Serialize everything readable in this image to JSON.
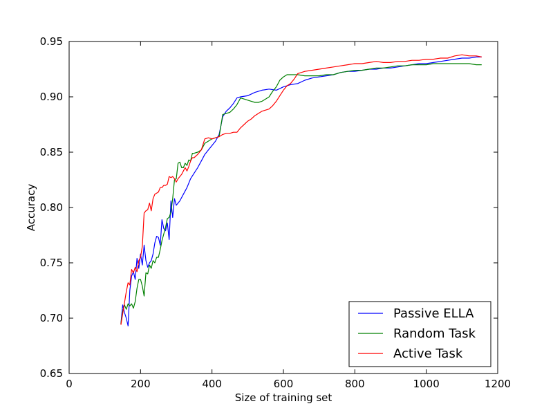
{
  "chart_data": {
    "type": "line",
    "xlabel": "Size of training set",
    "ylabel": "Accuracy",
    "xlim": [
      0,
      1200
    ],
    "ylim": [
      0.65,
      0.95
    ],
    "x_ticks": [
      "0",
      "200",
      "400",
      "600",
      "800",
      "1000",
      "1200"
    ],
    "y_ticks": [
      "0.65",
      "0.70",
      "0.75",
      "0.80",
      "0.85",
      "0.90",
      "0.95"
    ],
    "grid": false,
    "legend_position": "lower right",
    "series": [
      {
        "name": "Passive ELLA",
        "color": "#0000ff",
        "points": [
          [
            145,
            0.695
          ],
          [
            150,
            0.712
          ],
          [
            155,
            0.705
          ],
          [
            160,
            0.7
          ],
          [
            165,
            0.693
          ],
          [
            170,
            0.725
          ],
          [
            175,
            0.738
          ],
          [
            180,
            0.742
          ],
          [
            185,
            0.735
          ],
          [
            190,
            0.754
          ],
          [
            195,
            0.745
          ],
          [
            200,
            0.758
          ],
          [
            205,
            0.748
          ],
          [
            210,
            0.766
          ],
          [
            215,
            0.752
          ],
          [
            220,
            0.746
          ],
          [
            225,
            0.75
          ],
          [
            230,
            0.752
          ],
          [
            235,
            0.758
          ],
          [
            240,
            0.768
          ],
          [
            245,
            0.774
          ],
          [
            250,
            0.773
          ],
          [
            255,
            0.766
          ],
          [
            260,
            0.789
          ],
          [
            265,
            0.781
          ],
          [
            270,
            0.779
          ],
          [
            275,
            0.786
          ],
          [
            280,
            0.771
          ],
          [
            285,
            0.806
          ],
          [
            290,
            0.791
          ],
          [
            295,
            0.808
          ],
          [
            300,
            0.802
          ],
          [
            310,
            0.806
          ],
          [
            320,
            0.812
          ],
          [
            330,
            0.818
          ],
          [
            340,
            0.826
          ],
          [
            350,
            0.831
          ],
          [
            360,
            0.836
          ],
          [
            370,
            0.842
          ],
          [
            380,
            0.848
          ],
          [
            390,
            0.852
          ],
          [
            400,
            0.856
          ],
          [
            410,
            0.86
          ],
          [
            420,
            0.866
          ],
          [
            430,
            0.882
          ],
          [
            440,
            0.887
          ],
          [
            450,
            0.89
          ],
          [
            460,
            0.894
          ],
          [
            470,
            0.899
          ],
          [
            480,
            0.9
          ],
          [
            500,
            0.901
          ],
          [
            520,
            0.904
          ],
          [
            540,
            0.906
          ],
          [
            560,
            0.907
          ],
          [
            580,
            0.906
          ],
          [
            600,
            0.909
          ],
          [
            620,
            0.911
          ],
          [
            640,
            0.912
          ],
          [
            660,
            0.915
          ],
          [
            680,
            0.917
          ],
          [
            700,
            0.918
          ],
          [
            720,
            0.919
          ],
          [
            740,
            0.92
          ],
          [
            760,
            0.922
          ],
          [
            780,
            0.923
          ],
          [
            800,
            0.923
          ],
          [
            820,
            0.924
          ],
          [
            840,
            0.925
          ],
          [
            860,
            0.925
          ],
          [
            880,
            0.926
          ],
          [
            900,
            0.926
          ],
          [
            920,
            0.927
          ],
          [
            940,
            0.928
          ],
          [
            960,
            0.929
          ],
          [
            980,
            0.93
          ],
          [
            1000,
            0.93
          ],
          [
            1020,
            0.931
          ],
          [
            1040,
            0.932
          ],
          [
            1060,
            0.933
          ],
          [
            1080,
            0.934
          ],
          [
            1100,
            0.935
          ],
          [
            1120,
            0.935
          ],
          [
            1140,
            0.936
          ],
          [
            1155,
            0.936
          ]
        ]
      },
      {
        "name": "Random Task",
        "color": "#008000",
        "points": [
          [
            145,
            0.695
          ],
          [
            150,
            0.706
          ],
          [
            155,
            0.712
          ],
          [
            160,
            0.708
          ],
          [
            165,
            0.713
          ],
          [
            170,
            0.711
          ],
          [
            175,
            0.713
          ],
          [
            180,
            0.709
          ],
          [
            185,
            0.715
          ],
          [
            190,
            0.727
          ],
          [
            195,
            0.735
          ],
          [
            200,
            0.735
          ],
          [
            205,
            0.729
          ],
          [
            210,
            0.72
          ],
          [
            215,
            0.741
          ],
          [
            220,
            0.74
          ],
          [
            225,
            0.748
          ],
          [
            230,
            0.745
          ],
          [
            235,
            0.752
          ],
          [
            240,
            0.75
          ],
          [
            245,
            0.755
          ],
          [
            250,
            0.755
          ],
          [
            255,
            0.762
          ],
          [
            260,
            0.77
          ],
          [
            265,
            0.776
          ],
          [
            270,
            0.782
          ],
          [
            275,
            0.79
          ],
          [
            280,
            0.791
          ],
          [
            285,
            0.796
          ],
          [
            290,
            0.808
          ],
          [
            295,
            0.825
          ],
          [
            300,
            0.826
          ],
          [
            305,
            0.84
          ],
          [
            310,
            0.841
          ],
          [
            315,
            0.836
          ],
          [
            320,
            0.836
          ],
          [
            325,
            0.84
          ],
          [
            330,
            0.838
          ],
          [
            335,
            0.843
          ],
          [
            340,
            0.842
          ],
          [
            345,
            0.849
          ],
          [
            350,
            0.849
          ],
          [
            360,
            0.85
          ],
          [
            370,
            0.852
          ],
          [
            380,
            0.858
          ],
          [
            390,
            0.86
          ],
          [
            400,
            0.862
          ],
          [
            410,
            0.863
          ],
          [
            420,
            0.864
          ],
          [
            430,
            0.884
          ],
          [
            440,
            0.885
          ],
          [
            450,
            0.886
          ],
          [
            460,
            0.889
          ],
          [
            470,
            0.893
          ],
          [
            480,
            0.899
          ],
          [
            490,
            0.898
          ],
          [
            500,
            0.897
          ],
          [
            510,
            0.896
          ],
          [
            520,
            0.895
          ],
          [
            530,
            0.895
          ],
          [
            540,
            0.896
          ],
          [
            550,
            0.898
          ],
          [
            560,
            0.9
          ],
          [
            570,
            0.905
          ],
          [
            580,
            0.909
          ],
          [
            590,
            0.915
          ],
          [
            600,
            0.918
          ],
          [
            610,
            0.92
          ],
          [
            620,
            0.92
          ],
          [
            640,
            0.92
          ],
          [
            660,
            0.919
          ],
          [
            680,
            0.919
          ],
          [
            700,
            0.919
          ],
          [
            720,
            0.92
          ],
          [
            740,
            0.92
          ],
          [
            760,
            0.922
          ],
          [
            780,
            0.923
          ],
          [
            800,
            0.924
          ],
          [
            820,
            0.924
          ],
          [
            840,
            0.925
          ],
          [
            860,
            0.926
          ],
          [
            880,
            0.926
          ],
          [
            900,
            0.927
          ],
          [
            920,
            0.928
          ],
          [
            940,
            0.928
          ],
          [
            960,
            0.929
          ],
          [
            980,
            0.929
          ],
          [
            1000,
            0.929
          ],
          [
            1020,
            0.93
          ],
          [
            1040,
            0.93
          ],
          [
            1060,
            0.93
          ],
          [
            1080,
            0.93
          ],
          [
            1100,
            0.93
          ],
          [
            1120,
            0.93
          ],
          [
            1140,
            0.929
          ],
          [
            1155,
            0.929
          ]
        ]
      },
      {
        "name": "Active Task",
        "color": "#ff0000",
        "points": [
          [
            145,
            0.694
          ],
          [
            150,
            0.704
          ],
          [
            155,
            0.714
          ],
          [
            160,
            0.724
          ],
          [
            165,
            0.732
          ],
          [
            170,
            0.73
          ],
          [
            175,
            0.744
          ],
          [
            180,
            0.741
          ],
          [
            185,
            0.746
          ],
          [
            190,
            0.742
          ],
          [
            195,
            0.752
          ],
          [
            200,
            0.755
          ],
          [
            205,
            0.765
          ],
          [
            210,
            0.795
          ],
          [
            215,
            0.797
          ],
          [
            220,
            0.798
          ],
          [
            225,
            0.804
          ],
          [
            230,
            0.797
          ],
          [
            235,
            0.808
          ],
          [
            240,
            0.812
          ],
          [
            245,
            0.813
          ],
          [
            250,
            0.814
          ],
          [
            255,
            0.818
          ],
          [
            260,
            0.818
          ],
          [
            265,
            0.82
          ],
          [
            270,
            0.82
          ],
          [
            275,
            0.821
          ],
          [
            280,
            0.828
          ],
          [
            285,
            0.827
          ],
          [
            290,
            0.828
          ],
          [
            295,
            0.826
          ],
          [
            300,
            0.823
          ],
          [
            305,
            0.826
          ],
          [
            310,
            0.828
          ],
          [
            315,
            0.83
          ],
          [
            320,
            0.833
          ],
          [
            325,
            0.836
          ],
          [
            330,
            0.833
          ],
          [
            335,
            0.837
          ],
          [
            340,
            0.842
          ],
          [
            345,
            0.845
          ],
          [
            350,
            0.845
          ],
          [
            360,
            0.848
          ],
          [
            370,
            0.852
          ],
          [
            380,
            0.862
          ],
          [
            390,
            0.863
          ],
          [
            400,
            0.862
          ],
          [
            410,
            0.863
          ],
          [
            420,
            0.864
          ],
          [
            430,
            0.866
          ],
          [
            440,
            0.867
          ],
          [
            450,
            0.867
          ],
          [
            460,
            0.868
          ],
          [
            470,
            0.868
          ],
          [
            480,
            0.872
          ],
          [
            490,
            0.875
          ],
          [
            500,
            0.878
          ],
          [
            510,
            0.88
          ],
          [
            520,
            0.883
          ],
          [
            530,
            0.885
          ],
          [
            540,
            0.887
          ],
          [
            550,
            0.888
          ],
          [
            560,
            0.889
          ],
          [
            570,
            0.892
          ],
          [
            580,
            0.896
          ],
          [
            590,
            0.901
          ],
          [
            600,
            0.906
          ],
          [
            610,
            0.91
          ],
          [
            620,
            0.912
          ],
          [
            630,
            0.916
          ],
          [
            640,
            0.921
          ],
          [
            660,
            0.923
          ],
          [
            680,
            0.924
          ],
          [
            700,
            0.925
          ],
          [
            720,
            0.926
          ],
          [
            740,
            0.927
          ],
          [
            760,
            0.928
          ],
          [
            780,
            0.929
          ],
          [
            800,
            0.93
          ],
          [
            820,
            0.93
          ],
          [
            840,
            0.931
          ],
          [
            860,
            0.932
          ],
          [
            880,
            0.931
          ],
          [
            900,
            0.931
          ],
          [
            920,
            0.932
          ],
          [
            940,
            0.932
          ],
          [
            960,
            0.933
          ],
          [
            980,
            0.933
          ],
          [
            1000,
            0.934
          ],
          [
            1020,
            0.934
          ],
          [
            1040,
            0.935
          ],
          [
            1060,
            0.935
          ],
          [
            1080,
            0.937
          ],
          [
            1100,
            0.938
          ],
          [
            1120,
            0.937
          ],
          [
            1140,
            0.937
          ],
          [
            1155,
            0.936
          ]
        ]
      }
    ]
  }
}
